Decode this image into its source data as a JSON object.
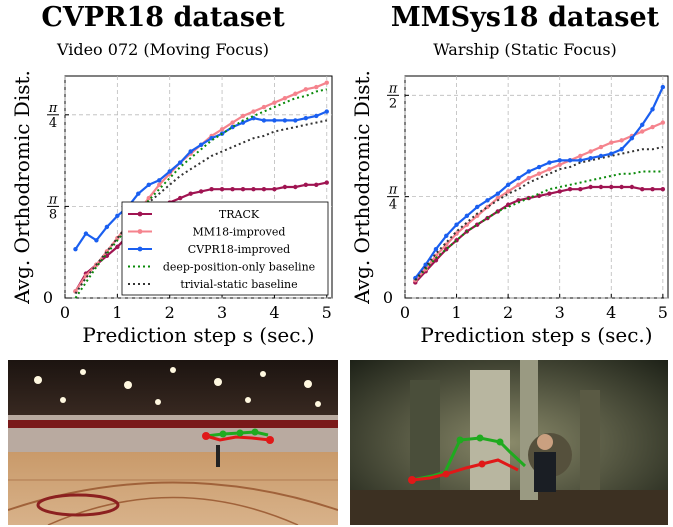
{
  "chart_data": [
    {
      "type": "line",
      "title": "CVPR18 dataset",
      "subtitle": "Video 072 (Moving Focus)",
      "xlabel": "Prediction step s (sec.)",
      "ylabel": "Avg. Orthodromic Dist.",
      "xlim": [
        0,
        5.1
      ],
      "ylim": [
        0,
        1.0
      ],
      "x_ticks": [
        "0",
        "1",
        "2",
        "3",
        "4",
        "5"
      ],
      "y_ticks": [
        "0",
        "π/8",
        "π/4"
      ],
      "grid": true,
      "legend": "bottom-right",
      "x": [
        0.2,
        0.4,
        0.6,
        0.8,
        1.0,
        1.2,
        1.4,
        1.6,
        1.8,
        2.0,
        2.2,
        2.4,
        2.6,
        2.8,
        3.0,
        3.2,
        3.4,
        3.6,
        3.8,
        4.0,
        4.2,
        4.4,
        4.6,
        4.8,
        5.0
      ],
      "series": [
        {
          "name": "TRACK",
          "color": "#a01452",
          "style": "solid-marker",
          "values": [
            0.03,
            0.11,
            0.15,
            0.19,
            0.23,
            0.28,
            0.33,
            0.37,
            0.4,
            0.43,
            0.45,
            0.47,
            0.48,
            0.49,
            0.49,
            0.49,
            0.49,
            0.49,
            0.49,
            0.49,
            0.5,
            0.5,
            0.51,
            0.51,
            0.52
          ]
        },
        {
          "name": "MM18-improved",
          "color": "#f5838d",
          "style": "solid-marker",
          "values": [
            0.03,
            0.1,
            0.15,
            0.21,
            0.27,
            0.33,
            0.39,
            0.45,
            0.51,
            0.56,
            0.61,
            0.65,
            0.69,
            0.73,
            0.76,
            0.79,
            0.82,
            0.84,
            0.86,
            0.88,
            0.9,
            0.92,
            0.94,
            0.95,
            0.97
          ]
        },
        {
          "name": "CVPR18-improved",
          "color": "#1a5ff0",
          "style": "solid-marker",
          "values": [
            0.22,
            0.29,
            0.26,
            0.32,
            0.37,
            0.41,
            0.47,
            0.51,
            0.53,
            0.57,
            0.61,
            0.66,
            0.69,
            0.72,
            0.74,
            0.77,
            0.79,
            0.81,
            0.8,
            0.8,
            0.8,
            0.8,
            0.81,
            0.82,
            0.84
          ]
        },
        {
          "name": "deep-position-only baseline",
          "color": "#0a8a0a",
          "style": "dotted",
          "values": [
            0.0,
            0.07,
            0.14,
            0.2,
            0.26,
            0.32,
            0.38,
            0.44,
            0.49,
            0.54,
            0.59,
            0.63,
            0.67,
            0.71,
            0.74,
            0.77,
            0.8,
            0.82,
            0.84,
            0.86,
            0.88,
            0.9,
            0.91,
            0.93,
            0.94
          ]
        },
        {
          "name": "trivial-static baseline",
          "color": "#333333",
          "style": "dotted",
          "values": [
            0.02,
            0.09,
            0.15,
            0.21,
            0.27,
            0.33,
            0.38,
            0.43,
            0.47,
            0.51,
            0.55,
            0.58,
            0.61,
            0.64,
            0.66,
            0.68,
            0.7,
            0.72,
            0.73,
            0.75,
            0.76,
            0.77,
            0.78,
            0.79,
            0.8
          ]
        }
      ]
    },
    {
      "type": "line",
      "title": "MMSys18 dataset",
      "subtitle": "Warship (Static Focus)",
      "xlabel": "Prediction step s (sec.)",
      "ylabel": "Avg. Orthodromic Dist.",
      "xlim": [
        0,
        5.1
      ],
      "ylim": [
        0,
        1.0
      ],
      "x_ticks": [
        "0",
        "1",
        "2",
        "3",
        "4",
        "5"
      ],
      "y_ticks": [
        "0",
        "π/4",
        "π/2"
      ],
      "grid": true,
      "x": [
        0.2,
        0.4,
        0.6,
        0.8,
        1.0,
        1.2,
        1.4,
        1.6,
        1.8,
        2.0,
        2.2,
        2.4,
        2.6,
        2.8,
        3.0,
        3.2,
        3.4,
        3.6,
        3.8,
        4.0,
        4.2,
        4.4,
        4.6,
        4.8,
        5.0
      ],
      "series": [
        {
          "name": "TRACK",
          "color": "#a01452",
          "style": "solid-marker",
          "values": [
            0.07,
            0.12,
            0.17,
            0.22,
            0.26,
            0.3,
            0.33,
            0.36,
            0.39,
            0.42,
            0.44,
            0.45,
            0.46,
            0.47,
            0.48,
            0.49,
            0.49,
            0.5,
            0.5,
            0.5,
            0.5,
            0.5,
            0.49,
            0.49,
            0.49
          ]
        },
        {
          "name": "MM18-improved",
          "color": "#f5838d",
          "style": "solid-marker",
          "values": [
            0.08,
            0.13,
            0.19,
            0.24,
            0.29,
            0.33,
            0.37,
            0.41,
            0.45,
            0.48,
            0.51,
            0.54,
            0.56,
            0.58,
            0.6,
            0.62,
            0.64,
            0.66,
            0.68,
            0.7,
            0.71,
            0.73,
            0.75,
            0.77,
            0.79
          ]
        },
        {
          "name": "CVPR18-improved",
          "color": "#1a5ff0",
          "style": "solid-marker",
          "values": [
            0.09,
            0.15,
            0.22,
            0.28,
            0.33,
            0.37,
            0.41,
            0.44,
            0.47,
            0.51,
            0.54,
            0.57,
            0.59,
            0.61,
            0.62,
            0.62,
            0.62,
            0.63,
            0.64,
            0.65,
            0.67,
            0.72,
            0.78,
            0.85,
            0.95
          ]
        },
        {
          "name": "deep-position-only baseline",
          "color": "#0a8a0a",
          "style": "dotted",
          "values": [
            0.08,
            0.13,
            0.18,
            0.22,
            0.26,
            0.3,
            0.33,
            0.36,
            0.39,
            0.41,
            0.43,
            0.45,
            0.47,
            0.49,
            0.5,
            0.51,
            0.52,
            0.53,
            0.54,
            0.55,
            0.56,
            0.56,
            0.57,
            0.57,
            0.57
          ]
        },
        {
          "name": "trivial-static baseline",
          "color": "#333333",
          "style": "dotted",
          "values": [
            0.08,
            0.14,
            0.2,
            0.25,
            0.3,
            0.34,
            0.38,
            0.41,
            0.44,
            0.47,
            0.49,
            0.52,
            0.54,
            0.56,
            0.58,
            0.59,
            0.61,
            0.62,
            0.63,
            0.64,
            0.65,
            0.66,
            0.67,
            0.67,
            0.68
          ]
        }
      ]
    }
  ]
}
